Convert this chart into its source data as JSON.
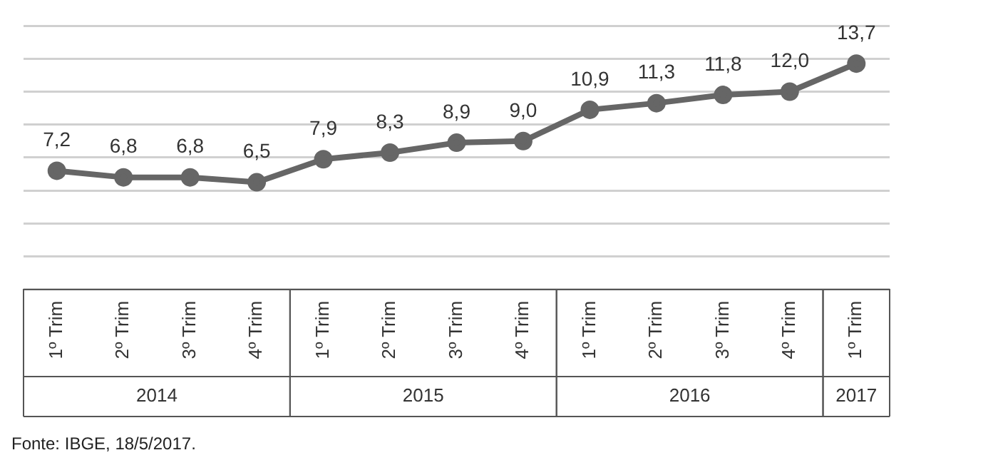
{
  "chart_data": {
    "type": "line",
    "categories": [
      "1º Trim",
      "2º Trim",
      "3º Trim",
      "4º Trim",
      "1º Trim",
      "2º Trim",
      "3º Trim",
      "4º Trim",
      "1º Trim",
      "2º Trim",
      "3º Trim",
      "4º Trim",
      "1º Trim"
    ],
    "series": [
      {
        "color": "#666666",
        "values": [
          7.2,
          6.8,
          6.8,
          6.5,
          7.9,
          8.3,
          8.9,
          9.0,
          10.9,
          11.3,
          11.8,
          12.0,
          13.7
        ],
        "value_labels": [
          "7,2",
          "6,8",
          "6,8",
          "6,5",
          "7,9",
          "8,3",
          "8,9",
          "9,0",
          "10,9",
          "11,3",
          "11,8",
          "12,0",
          "13,7"
        ]
      }
    ],
    "ylim": [
      0,
      16
    ],
    "yticks": [
      {
        "value": 0,
        "label": null
      },
      {
        "value": 2,
        "label": null
      },
      {
        "value": 4,
        "label": null
      },
      {
        "value": 6,
        "label": null
      },
      {
        "value": 8,
        "label": null
      },
      {
        "value": 10,
        "label": null
      },
      {
        "value": 12,
        "label": null
      },
      {
        "value": 14,
        "label": null
      },
      {
        "value": 16,
        "label": null
      }
    ],
    "tick_labels": "x",
    "grid": "y",
    "marker": "circle",
    "line_style": "solid",
    "legend": false,
    "annotations": [
      "2014",
      "2015",
      "2016",
      "2017",
      "Fonte: IBGE, 18/5/2017."
    ]
  }
}
